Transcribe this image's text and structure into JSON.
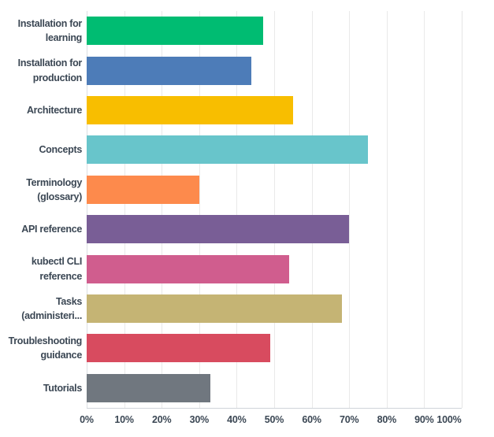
{
  "chart_data": {
    "type": "bar",
    "orientation": "horizontal",
    "title": "",
    "xlabel": "",
    "ylabel": "",
    "xlim": [
      0,
      100
    ],
    "grid": true,
    "legend": false,
    "unit": "%",
    "categories": [
      "Installation for learning",
      "Installation for production",
      "Architecture",
      "Concepts",
      "Terminology (glossary)",
      "API reference",
      "kubectl CLI reference",
      "Tasks (administeri...",
      "Troubleshooting guidance",
      "Tutorials"
    ],
    "values": [
      47,
      44,
      55,
      75,
      30,
      70,
      54,
      68,
      49,
      33
    ],
    "bar_colors": [
      "#00bc72",
      "#4d7cb8",
      "#f8be00",
      "#68c5cb",
      "#fd8a4c",
      "#795e96",
      "#d05d8e",
      "#c5b474",
      "#d84b5f",
      "#70777f"
    ],
    "x_tick_values": [
      0,
      10,
      20,
      30,
      40,
      50,
      60,
      70,
      80,
      90,
      100
    ],
    "x_tick_labels": [
      "0%",
      "10%",
      "20%",
      "30%",
      "40%",
      "50%",
      "60%",
      "70%",
      "80%",
      "90%",
      "100%"
    ]
  },
  "colors": {
    "background": "#ffffff",
    "label_text": "#3b4754",
    "gridline": "#e9e9e9",
    "axis_line": "#cfd4d9"
  }
}
